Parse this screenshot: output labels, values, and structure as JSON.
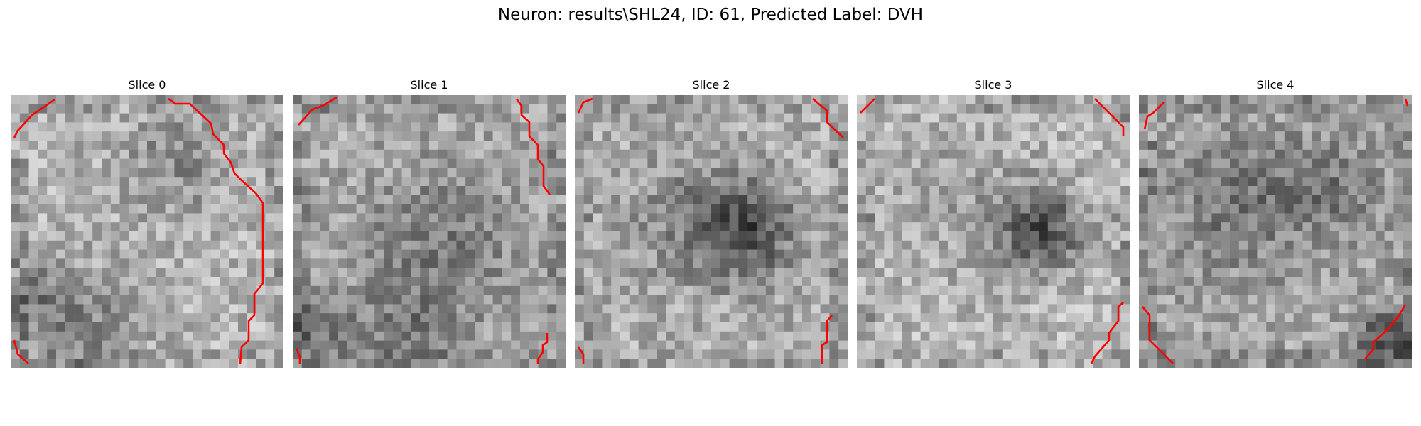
{
  "figure": {
    "title": "Neuron: results\\SHL24, ID: 61, Predicted Label: DVH"
  },
  "panels": [
    {
      "title": "Slice 0",
      "overlay_color": "#ff0000",
      "base": 180,
      "dark_blobs": [
        [
          0.6,
          0.25,
          0.2,
          -40
        ],
        [
          0.1,
          0.75,
          0.15,
          -50
        ],
        [
          0.3,
          0.85,
          0.2,
          -40
        ]
      ]
    },
    {
      "title": "Slice 1",
      "overlay_color": "#ff0000",
      "base": 170,
      "dark_blobs": [
        [
          0.55,
          0.55,
          0.3,
          -45
        ],
        [
          0.05,
          0.85,
          0.15,
          -60
        ],
        [
          0.4,
          0.9,
          0.2,
          -40
        ]
      ]
    },
    {
      "title": "Slice 2",
      "overlay_color": "#ff0000",
      "base": 175,
      "dark_blobs": [
        [
          0.63,
          0.5,
          0.18,
          -90
        ],
        [
          0.4,
          0.45,
          0.25,
          -35
        ]
      ]
    },
    {
      "title": "Slice 3",
      "overlay_color": "#ff0000",
      "base": 185,
      "dark_blobs": [
        [
          0.68,
          0.5,
          0.15,
          -100
        ],
        [
          0.4,
          0.4,
          0.3,
          -25
        ]
      ]
    },
    {
      "title": "Slice 4",
      "overlay_color": "#ff0000",
      "base": 165,
      "dark_blobs": [
        [
          0.35,
          0.4,
          0.25,
          -45
        ],
        [
          0.7,
          0.35,
          0.2,
          -40
        ],
        [
          0.9,
          0.9,
          0.12,
          -70
        ]
      ]
    }
  ]
}
